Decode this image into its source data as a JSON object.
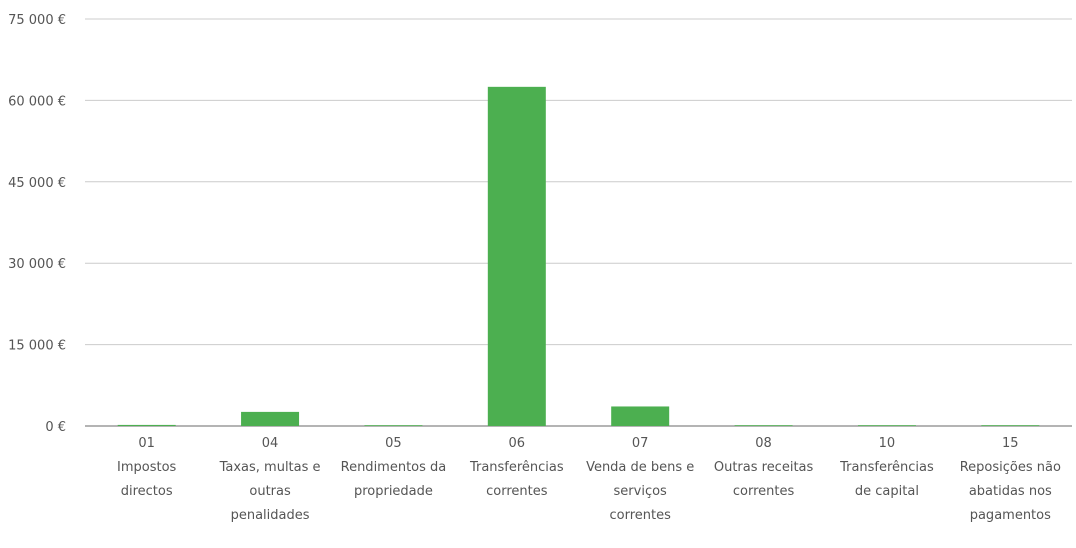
{
  "chart_data": {
    "type": "bar",
    "title": "",
    "xlabel": "",
    "ylabel": "",
    "ylim": [
      0,
      75000
    ],
    "y_ticks": [
      0,
      15000,
      30000,
      45000,
      60000,
      75000
    ],
    "y_tick_labels": [
      "0 €",
      "15 000 €",
      "30 000 €",
      "45 000 €",
      "60 000 €",
      "75 000 €"
    ],
    "categories": [
      {
        "code": "01",
        "label": [
          "Impostos",
          "directos"
        ]
      },
      {
        "code": "04",
        "label": [
          "Taxas, multas e",
          "outras",
          "penalidades"
        ]
      },
      {
        "code": "05",
        "label": [
          "Rendimentos da",
          "propriedade"
        ]
      },
      {
        "code": "06",
        "label": [
          "Transferências",
          "correntes"
        ]
      },
      {
        "code": "07",
        "label": [
          "Venda de bens e",
          "serviços",
          "correntes"
        ]
      },
      {
        "code": "08",
        "label": [
          "Outras receitas",
          "correntes"
        ]
      },
      {
        "code": "10",
        "label": [
          "Transferências",
          "de capital"
        ]
      },
      {
        "code": "15",
        "label": [
          "Reposições não",
          "abatidas nos",
          "pagamentos"
        ]
      }
    ],
    "values": [
      200,
      2600,
      100,
      62500,
      3600,
      50,
      50,
      50
    ],
    "grid": true,
    "legend": "none",
    "colors": {
      "bar": "#4caf50",
      "grid": "#cccccc",
      "axis": "#888888",
      "text": "#555555"
    }
  }
}
